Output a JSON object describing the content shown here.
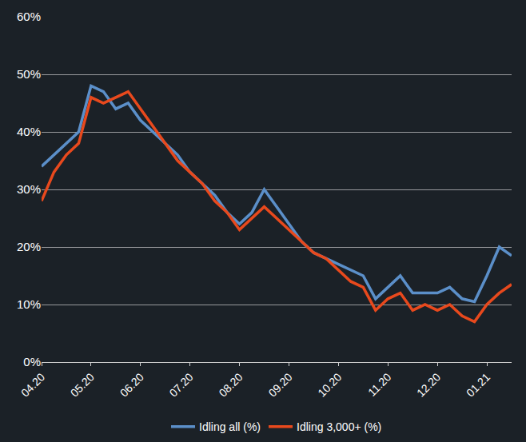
{
  "chart_data": {
    "type": "line",
    "categories": [
      "04.20",
      null,
      null,
      null,
      "05.20",
      null,
      null,
      null,
      "06.20",
      null,
      null,
      null,
      "07.20",
      null,
      null,
      null,
      "08.20",
      null,
      null,
      null,
      "09.20",
      null,
      null,
      null,
      "10.20",
      null,
      null,
      null,
      "11.20",
      null,
      null,
      null,
      "12.20",
      null,
      null,
      null,
      "01.21",
      null,
      null
    ],
    "series": [
      {
        "name": "Idling all (%)",
        "color": "#5b8fc9",
        "values": [
          34,
          36,
          38,
          40,
          48,
          47,
          44,
          45,
          42,
          40,
          38,
          36,
          33,
          31,
          29,
          26,
          24,
          26,
          30,
          27,
          24,
          21,
          19,
          18,
          17,
          16,
          15,
          11,
          13,
          15,
          12,
          12,
          12,
          13,
          11,
          10.5,
          15,
          20,
          18.5
        ]
      },
      {
        "name": "Idling 3,000+ (%)",
        "color": "#e8491d",
        "values": [
          28,
          33,
          36,
          38,
          46,
          45,
          46,
          47,
          44,
          41,
          38,
          35,
          33,
          31,
          28,
          26,
          23,
          25,
          27,
          25,
          23,
          21,
          19,
          18,
          16,
          14,
          13,
          9,
          11,
          12,
          9,
          10,
          9,
          10,
          8,
          7,
          10,
          12,
          13.5
        ]
      }
    ],
    "ylim": [
      0,
      60
    ],
    "yticks": [
      {
        "value": 0,
        "label": "0%"
      },
      {
        "value": 10,
        "label": "10%"
      },
      {
        "value": 20,
        "label": "20%"
      },
      {
        "value": 30,
        "label": "30%"
      },
      {
        "value": 40,
        "label": "40%"
      },
      {
        "value": 50,
        "label": "50%"
      },
      {
        "value": 60,
        "label": "60%"
      }
    ],
    "grid": true,
    "legend": "bottom"
  }
}
